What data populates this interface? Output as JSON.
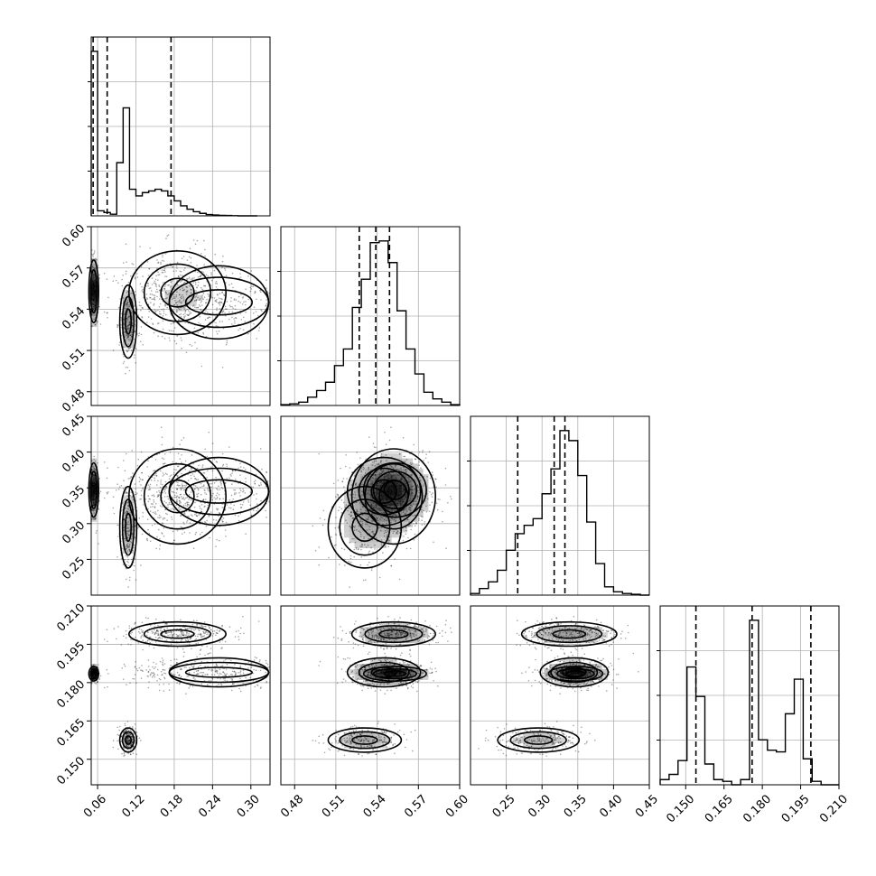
{
  "chart_data": {
    "type": "corner",
    "parameters": 4,
    "grid": true,
    "colors": {
      "line": "#000000",
      "points": "#000000",
      "grid": "#b0b0b0",
      "density_dark": "#000000",
      "density_light": "#ffffff"
    },
    "quantile_lines": "dashed",
    "ranges": [
      [
        0.05,
        0.33
      ],
      [
        0.47,
        0.6
      ],
      [
        0.2,
        0.45
      ],
      [
        0.14,
        0.21
      ]
    ],
    "ticks": [
      {
        "values": [
          0.06,
          0.12,
          0.18,
          0.24,
          0.3
        ],
        "labels": [
          "0.06",
          "0.12",
          "0.18",
          "0.24",
          "0.30"
        ]
      },
      {
        "values": [
          0.48,
          0.51,
          0.54,
          0.57,
          0.6
        ],
        "labels": [
          "0.48",
          "0.51",
          "0.54",
          "0.57",
          "0.60"
        ]
      },
      {
        "values": [
          0.25,
          0.3,
          0.35,
          0.4,
          0.45
        ],
        "labels": [
          "0.25",
          "0.30",
          "0.35",
          "0.40",
          "0.45"
        ]
      },
      {
        "values": [
          0.15,
          0.165,
          0.18,
          0.195,
          0.21
        ],
        "labels": [
          "0.150",
          "0.165",
          "0.180",
          "0.195",
          "0.210"
        ]
      }
    ],
    "x_tick_labels": [
      [
        "0.06",
        "0.12",
        "0.18",
        "0.24",
        "0.30"
      ],
      [
        "0.48",
        "0.51",
        "0.54",
        "0.57",
        "0.60"
      ],
      [
        "0.25",
        "0.30",
        "0.35",
        "0.40",
        "0.45"
      ],
      [
        "0.150",
        "0.165",
        "0.180",
        "0.195",
        "0.210"
      ]
    ],
    "y_tick_labels": [
      [
        "0.48",
        "0.51",
        "0.54",
        "0.57",
        "0.60"
      ],
      [
        "0.25",
        "0.30",
        "0.35",
        "0.40",
        "0.45"
      ],
      [
        "0.150",
        "0.165",
        "0.180",
        "0.195",
        "0.210"
      ]
    ],
    "histograms": [
      {
        "param": 0,
        "bin_edges": [
          0.05,
          0.06,
          0.07,
          0.08,
          0.09,
          0.1,
          0.11,
          0.12,
          0.13,
          0.14,
          0.15,
          0.16,
          0.17,
          0.18,
          0.19,
          0.2,
          0.21,
          0.22,
          0.23,
          0.24,
          0.25,
          0.26,
          0.27,
          0.28,
          0.29,
          0.3,
          0.31
        ],
        "counts": [
          0.99,
          0.03,
          0.02,
          0.01,
          0.32,
          0.65,
          0.16,
          0.12,
          0.14,
          0.15,
          0.16,
          0.15,
          0.12,
          0.09,
          0.06,
          0.04,
          0.025,
          0.015,
          0.008,
          0.005,
          0.003,
          0.002,
          0.001,
          0.0,
          0.0,
          0.0
        ],
        "quantiles": [
          0.053,
          0.075,
          0.175
        ]
      },
      {
        "param": 1,
        "bin_edges": [
          0.47,
          0.4765,
          0.483,
          0.4895,
          0.496,
          0.5025,
          0.509,
          0.5155,
          0.522,
          0.5285,
          0.535,
          0.5415,
          0.548,
          0.5545,
          0.561,
          0.5675,
          0.574,
          0.5805,
          0.587,
          0.5935,
          0.6
        ],
        "counts": [
          0.005,
          0.01,
          0.02,
          0.05,
          0.09,
          0.14,
          0.24,
          0.34,
          0.59,
          0.76,
          0.98,
          0.99,
          0.86,
          0.57,
          0.34,
          0.19,
          0.08,
          0.04,
          0.02,
          0.005
        ],
        "quantiles": [
          0.527,
          0.539,
          0.549
        ]
      },
      {
        "param": 2,
        "bin_edges": [
          0.2,
          0.2125,
          0.225,
          0.2375,
          0.25,
          0.2625,
          0.275,
          0.2875,
          0.3,
          0.3125,
          0.325,
          0.3375,
          0.35,
          0.3625,
          0.375,
          0.3875,
          0.4,
          0.4125,
          0.425,
          0.4375,
          0.45
        ],
        "counts": [
          0.01,
          0.04,
          0.08,
          0.15,
          0.27,
          0.37,
          0.42,
          0.46,
          0.61,
          0.76,
          0.99,
          0.93,
          0.72,
          0.44,
          0.19,
          0.05,
          0.02,
          0.01,
          0.005,
          0.0
        ],
        "quantiles": [
          0.266,
          0.317,
          0.332
        ]
      },
      {
        "param": 3,
        "bin_edges": [
          0.14,
          0.1435,
          0.147,
          0.1505,
          0.154,
          0.1575,
          0.161,
          0.1645,
          0.168,
          0.1715,
          0.175,
          0.1785,
          0.182,
          0.1855,
          0.189,
          0.1925,
          0.196,
          0.1995,
          0.203,
          0.2065,
          0.21
        ],
        "counts": [
          0.03,
          0.06,
          0.14,
          0.68,
          0.51,
          0.12,
          0.03,
          0.02,
          0.0,
          0.03,
          0.95,
          0.26,
          0.2,
          0.19,
          0.41,
          0.61,
          0.15,
          0.02,
          0.0,
          0.0
        ],
        "quantiles": [
          0.154,
          0.176,
          0.199
        ]
      }
    ],
    "modes": [
      {
        "center": [
          0.054,
          0.553,
          0.347,
          0.1835
        ],
        "sigma": [
          0.004,
          0.012,
          0.02,
          0.0015
        ],
        "weight": 0.22
      },
      {
        "center": [
          0.108,
          0.531,
          0.295,
          0.1575
        ],
        "sigma": [
          0.007,
          0.014,
          0.03,
          0.0025
        ],
        "weight": 0.18
      },
      {
        "center": [
          0.185,
          0.552,
          0.338,
          0.199
        ],
        "sigma": [
          0.04,
          0.016,
          0.035,
          0.0025
        ],
        "weight": 0.3
      },
      {
        "center": [
          0.25,
          0.545,
          0.345,
          0.184
        ],
        "sigma": [
          0.08,
          0.014,
          0.025,
          0.003
        ],
        "weight": 0.3
      }
    ]
  }
}
